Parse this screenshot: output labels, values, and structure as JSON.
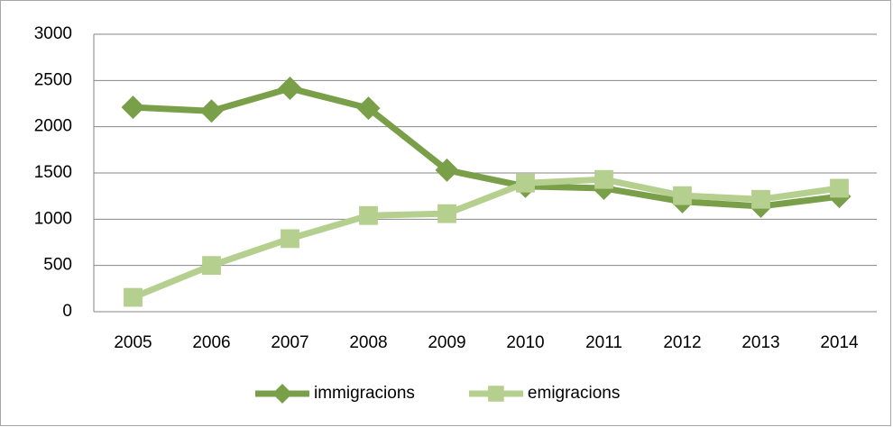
{
  "chart_data": {
    "type": "line",
    "categories": [
      "2005",
      "2006",
      "2007",
      "2008",
      "2009",
      "2010",
      "2011",
      "2012",
      "2013",
      "2014"
    ],
    "series": [
      {
        "name": "immigracions",
        "color": "#7a9f49",
        "marker": "diamond",
        "values": [
          2210,
          2170,
          2415,
          2200,
          1530,
          1355,
          1335,
          1190,
          1140,
          1245
        ]
      },
      {
        "name": "emigracions",
        "color": "#b5cf8e",
        "marker": "square",
        "values": [
          155,
          500,
          790,
          1040,
          1060,
          1390,
          1430,
          1255,
          1215,
          1335
        ]
      }
    ],
    "ylim": [
      0,
      3000
    ],
    "yticks": [
      0,
      500,
      1000,
      1500,
      2000,
      2500,
      3000
    ],
    "grid": true,
    "legend": "bottom"
  }
}
